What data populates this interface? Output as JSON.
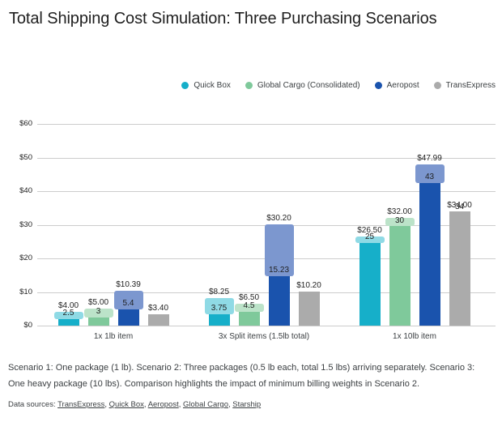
{
  "title": "Total Shipping Cost Simulation: Three Purchasing Scenarios",
  "chart_data": {
    "type": "bar",
    "title": "Total Shipping Cost Simulation: Three Purchasing Scenarios",
    "categories": [
      "1x 1lb item",
      "3x Split items (1.5lb total)",
      "1x 10lb item"
    ],
    "series": [
      {
        "name": "Quick Box",
        "color": "#16afc9",
        "overlay_color": "#8fdae5",
        "totals": [
          4.0,
          8.25,
          26.5
        ],
        "base_values": [
          2.5,
          3.75,
          25
        ],
        "total_labels": [
          "$4.00",
          "$8.25",
          "$26.50"
        ],
        "base_labels": [
          "2.5",
          "3.75",
          "25"
        ]
      },
      {
        "name": "Global Cargo (Consolidated)",
        "color": "#7fc99b",
        "overlay_color": "#bce3c9",
        "totals": [
          5.0,
          6.5,
          32.0
        ],
        "base_values": [
          3,
          4.5,
          30
        ],
        "total_labels": [
          "$5.00",
          "$6.50",
          "$32.00"
        ],
        "base_labels": [
          "3",
          "4.5",
          "30"
        ]
      },
      {
        "name": "Aeropost",
        "color": "#1a53ad",
        "overlay_color": "#7c97cf",
        "totals": [
          10.39,
          30.2,
          47.99
        ],
        "base_values": [
          5.4,
          15.23,
          43
        ],
        "total_labels": [
          "$10.39",
          "$30.20",
          "$47.99"
        ],
        "base_labels": [
          "5.4",
          "15.23",
          "43"
        ]
      },
      {
        "name": "TransExpress",
        "color": "#ababab",
        "overlay_color": null,
        "totals": [
          3.4,
          10.2,
          34.0
        ],
        "base_values": [
          3.4,
          10.2,
          34.0
        ],
        "total_labels": [
          "$3.40",
          "$10.20",
          "$34.00"
        ],
        "base_labels": [
          "",
          "",
          "34"
        ]
      }
    ],
    "ylim": [
      0,
      60
    ],
    "ytick_labels": [
      "$0",
      "$10",
      "$20",
      "$30",
      "$40",
      "$50",
      "$60"
    ],
    "grid": true,
    "legend_position": "top-right",
    "xlabel": "",
    "ylabel": ""
  },
  "footer": {
    "note": "Scenario 1: One package (1 lb). Scenario 2: Three packages (0.5 lb each, total 1.5 lbs) arriving separately. Scenario 3: One heavy package (10 lbs). Comparison highlights the impact of minimum billing weights in Scenario 2.",
    "sources_label": "Data sources:",
    "sources": [
      "TransExpress",
      "Quick Box",
      "Aeropost",
      "Global Cargo",
      "Starship"
    ]
  }
}
